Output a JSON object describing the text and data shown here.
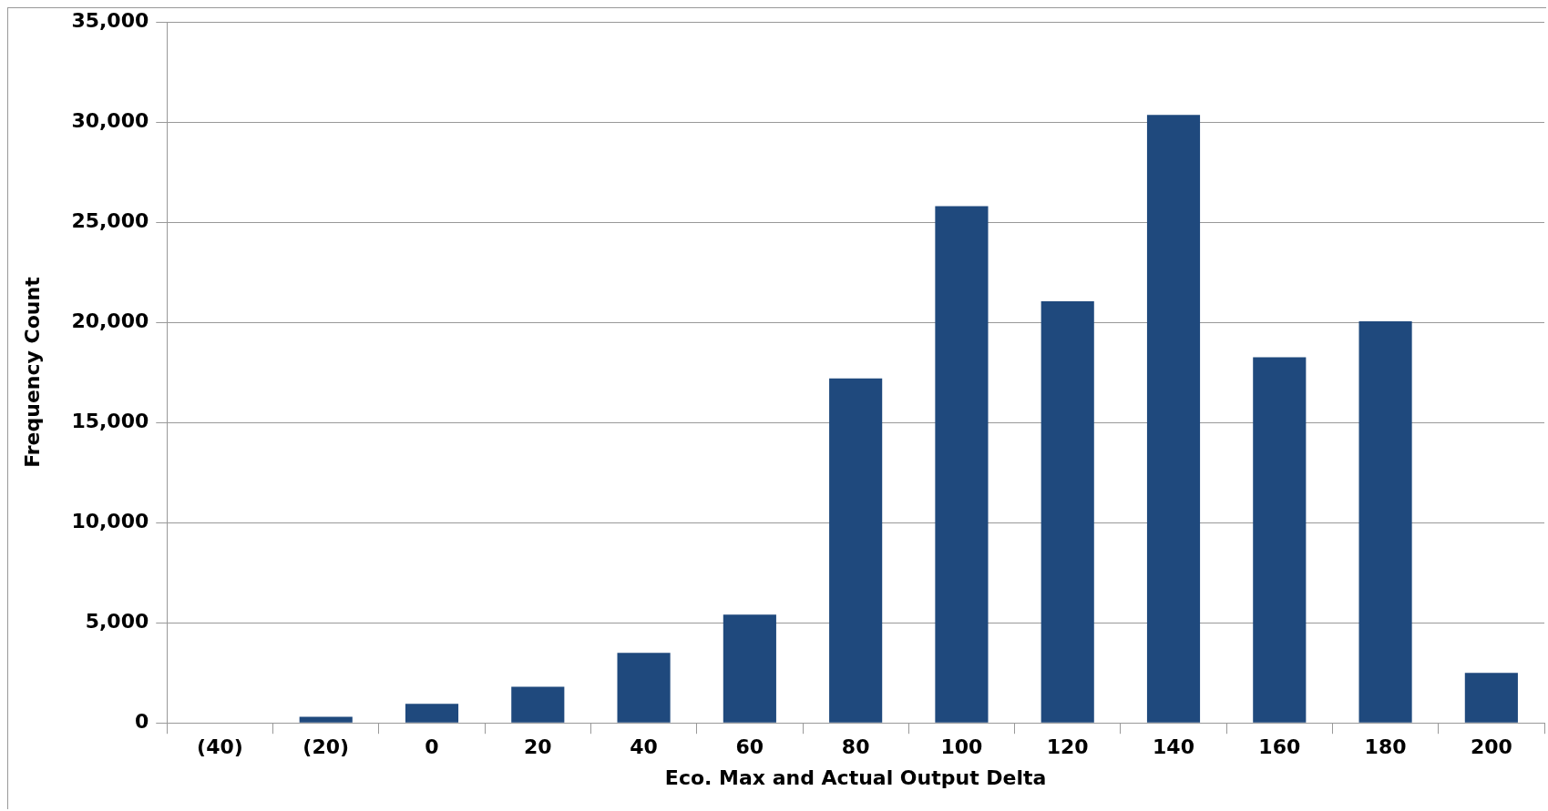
{
  "chart_data": {
    "type": "bar",
    "xlabel": "Eco. Max and Actual Output Delta",
    "ylabel": "Frequency Count",
    "categories": [
      "(40)",
      "(20)",
      "0",
      "20",
      "40",
      "60",
      "80",
      "100",
      "120",
      "140",
      "160",
      "180",
      "200"
    ],
    "values": [
      0,
      300,
      950,
      1800,
      3500,
      5400,
      17200,
      25800,
      21050,
      30350,
      18250,
      20050,
      2500
    ],
    "color": "#1f497d",
    "ylim": [
      0,
      35000
    ],
    "yticks": [
      0,
      {
        "value": 5000,
        "label": "5,000"
      },
      {
        "value": 10000,
        "label": "10,000"
      },
      {
        "value": 15000,
        "label": "15,000"
      },
      {
        "value": 20000,
        "label": "20,000"
      },
      {
        "value": 25000,
        "label": "25,000"
      },
      {
        "value": 30000,
        "label": "30,000"
      },
      {
        "value": 35000,
        "label": "35,000"
      }
    ],
    "grid": "y"
  }
}
